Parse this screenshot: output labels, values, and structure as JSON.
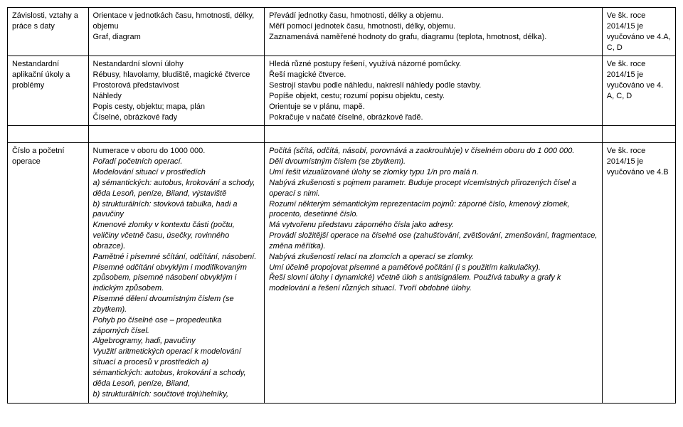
{
  "rows": [
    {
      "c1": "Závislosti, vztahy a práce s daty",
      "c2": "Orientace v jednotkách času, hmotnosti, délky, objemu\nGraf, diagram",
      "c3": "Převádí jednotky času, hmotnosti, délky a objemu.\nMěří pomocí jednotek času, hmotnosti, délky, objemu.\nZaznamenává naměřené hodnoty do grafu, diagramu (teplota, hmotnost, délka).",
      "c4": "Ve šk. roce 2014/15 je vyučováno ve 4.A, C, D"
    },
    {
      "c1": "Nestandardní aplikační úkoly a problémy",
      "c2": "Nestandardní slovní úlohy\nRébusy, hlavolamy, bludiště, magické čtverce\nProstorová představivost\nNáhledy\nPopis cesty, objektu; mapa, plán\nČíselné, obrázkové řady",
      "c3": "Hledá různé postupy řešení, využívá názorné pomůcky.\nŘeší magické čtverce.\nSestrojí stavbu podle náhledu, nakreslí náhledy podle stavby.\nPopíše objekt, cestu; rozumí popisu objektu, cesty.\nOrientuje se v plánu, mapě.\nPokračuje v načaté číselné, obrázkové řadě.",
      "c4": "Ve šk. roce 2014/15 je vyučováno ve 4. A, C, D"
    },
    {
      "c1": "Číslo a početní operace",
      "c2_parts": [
        {
          "text": "Numerace v oboru do 1000 000.",
          "italic": false
        },
        {
          "text": "Pořadí početních operací.",
          "italic": true
        },
        {
          "text": "Modelování situací v prostředích",
          "italic": true
        },
        {
          "text": "a) sémantických: autobus, krokování a schody, děda Lesoň, peníze, Biland, výstaviště",
          "italic": true
        },
        {
          "text": "b) strukturálních: stovková tabulka, hadi a pavučiny",
          "italic": true
        },
        {
          "text": "Kmenové zlomky v kontextu části (počtu, veličiny včetně času, úsečky, rovinného obrazce).",
          "italic": true
        },
        {
          "text": "Pamětné i písemné sčítání, odčítání, násobení.",
          "italic": true
        },
        {
          "text": "Písemné odčítání obvyklým i modifikovaným způsobem, písemné násobení obvyklým i indickým způsobem.",
          "italic": true
        },
        {
          "text": "Písemné dělení dvoumístným číslem (se zbytkem).",
          "italic": true
        },
        {
          "text": "Pohyb po číselné ose – propedeutika záporných čísel.",
          "italic": true
        },
        {
          "text": "Algebrogramy, hadi, pavučiny",
          "italic": true
        },
        {
          "text": "Využití aritmetických operací k modelování situací a procesů v prostředích a) sémantických: autobus, krokování a schody, děda Lesoň, peníze, Biland,",
          "italic": true
        },
        {
          "text": "b) strukturálních: součtové trojúhelníky,",
          "italic": true
        }
      ],
      "c3_parts": [
        {
          "text": "Počítá (sčítá, odčítá, násobí, porovnává a zaokrouhluje) v číselném oboru do 1 000 000.",
          "italic": true
        },
        {
          "text": "Dělí dvoumístným číslem (se zbytkem).",
          "italic": true
        },
        {
          "text": "Umí řešit vizualizované úlohy se zlomky typu 1/n pro malá n.",
          "italic": true
        },
        {
          "text": "Nabývá zkušenosti s pojmem parametr. Buduje procept vícemístných přirozených čísel a operací s nimi.",
          "italic": true
        },
        {
          "text": "Rozumí některým sémantickým reprezentacím pojmů: záporné číslo, kmenový zlomek, procento, desetinné číslo.",
          "italic": true
        },
        {
          "text": "Má vytvořenu představu záporného čísla jako adresy.",
          "italic": true
        },
        {
          "text": "Provádí složitější operace na číselné ose (zahušťování, zvětšování, zmenšování, fragmentace, změna měřítka).",
          "italic": true
        },
        {
          "text": "Nabývá zkušeností relací na zlomcích a operací se zlomky.",
          "italic": true
        },
        {
          "text": "Umí účelně propojovat písemné a paměťové počítání (i s použitím kalkulačky).",
          "italic": true
        },
        {
          "text": "Řeší slovní úlohy i dynamické) včetně úloh s antisignálem. Používá tabulky a grafy k modelování a řešení různých situací. Tvoří obdobné úlohy.",
          "italic": true
        }
      ],
      "c4": "Ve šk. roce 2014/15 je vyučováno ve 4.B"
    }
  ]
}
